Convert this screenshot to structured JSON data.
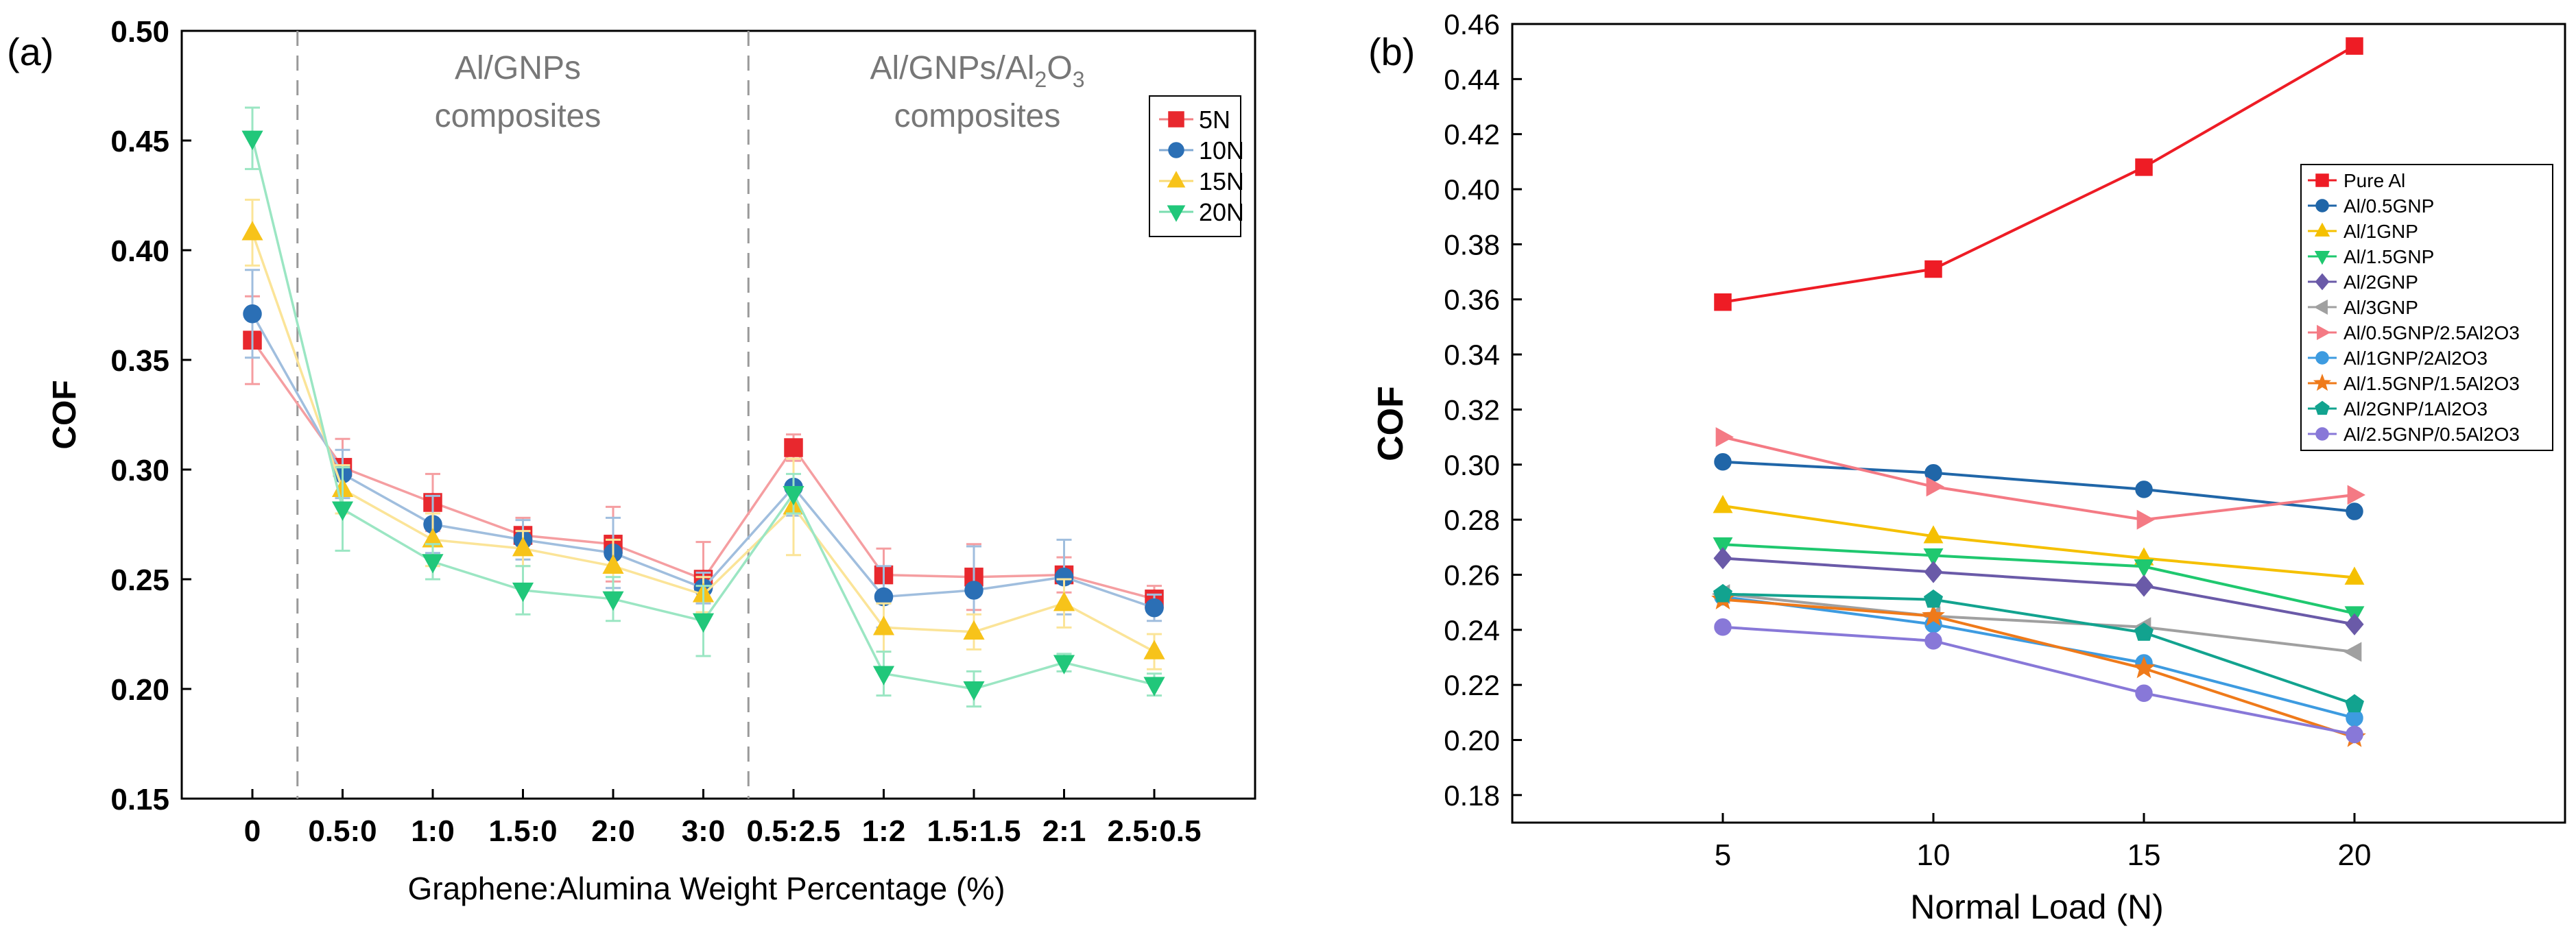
{
  "chart_data": [
    {
      "type": "line",
      "panel_label": "(a)",
      "title": "",
      "xlabel": "Graphene:Alumina Weight Percentage (%)",
      "ylabel": "COF",
      "categories": [
        "0",
        "0.5:0",
        "1:0",
        "1.5:0",
        "2:0",
        "3:0",
        "0.5:2.5",
        "1:2",
        "1.5:1.5",
        "2:1",
        "2.5:0.5"
      ],
      "ylim": [
        0.15,
        0.5
      ],
      "yticks": [
        "0.15",
        "0.20",
        "0.25",
        "0.30",
        "0.35",
        "0.40",
        "0.45",
        "0.50"
      ],
      "grid": false,
      "legend_position": "top-right",
      "region_labels": [
        {
          "lines": [
            "Al/GNPs",
            "composites"
          ],
          "after_category": "1.5:0"
        },
        {
          "line1_pre": "Al/GNPs/Al",
          "line1_sub": "2",
          "line1_mid": "O",
          "line1_sub2": "3",
          "line2": "composites",
          "after_category": "1.5:1.5"
        }
      ],
      "series": [
        {
          "name": "5N",
          "color": "#e8282e",
          "marker": "square",
          "values": [
            0.359,
            0.301,
            0.285,
            0.27,
            0.266,
            0.25,
            0.31,
            0.252,
            0.251,
            0.252,
            0.241
          ],
          "errors": [
            0.02,
            0.013,
            0.013,
            0.008,
            0.017,
            0.017,
            0.006,
            0.012,
            0.015,
            0.008,
            0.006
          ]
        },
        {
          "name": "10N",
          "color": "#2b6fb5",
          "marker": "circle",
          "values": [
            0.371,
            0.298,
            0.275,
            0.268,
            0.262,
            0.246,
            0.292,
            0.242,
            0.245,
            0.251,
            0.237
          ],
          "errors": [
            0.02,
            0.011,
            0.013,
            0.009,
            0.016,
            0.007,
            0.013,
            0.014,
            0.02,
            0.017,
            0.006
          ]
        },
        {
          "name": "15N",
          "color": "#f7c31a",
          "marker": "triangle-up",
          "values": [
            0.408,
            0.291,
            0.268,
            0.264,
            0.256,
            0.243,
            0.283,
            0.228,
            0.226,
            0.239,
            0.217
          ],
          "errors": [
            0.015,
            0.011,
            0.012,
            0.008,
            0.012,
            0.008,
            0.022,
            0.011,
            0.008,
            0.011,
            0.008
          ]
        },
        {
          "name": "20N",
          "color": "#21c77a",
          "marker": "triangle-down",
          "values": [
            0.451,
            0.282,
            0.258,
            0.245,
            0.241,
            0.231,
            0.289,
            0.207,
            0.2,
            0.212,
            0.202
          ],
          "errors": [
            0.014,
            0.019,
            0.008,
            0.011,
            0.01,
            0.016,
            0.009,
            0.01,
            0.008,
            0.004,
            0.005
          ]
        }
      ]
    },
    {
      "type": "line",
      "panel_label": "(b)",
      "title": "",
      "xlabel": "Normal Load (N)",
      "ylabel": "COF",
      "x": [
        5,
        10,
        15,
        20
      ],
      "xticks": [
        "5",
        "10",
        "15",
        "20"
      ],
      "xlim": [
        0,
        25
      ],
      "ylim": [
        0.17,
        0.46
      ],
      "yticks": [
        "0.18",
        "0.20",
        "0.22",
        "0.24",
        "0.26",
        "0.28",
        "0.30",
        "0.32",
        "0.34",
        "0.36",
        "0.38",
        "0.40",
        "0.42",
        "0.44",
        "0.46"
      ],
      "grid": false,
      "legend_position": "right",
      "series": [
        {
          "name": "Pure Al",
          "color": "#ee1c25",
          "marker": "square",
          "values": [
            0.359,
            0.371,
            0.408,
            0.452
          ]
        },
        {
          "name": "Al/0.5GNP",
          "color": "#2066a8",
          "marker": "circle",
          "values": [
            0.301,
            0.297,
            0.291,
            0.283
          ]
        },
        {
          "name": "Al/1GNP",
          "color": "#f5c000",
          "marker": "triangle-up",
          "values": [
            0.285,
            0.274,
            0.266,
            0.259
          ]
        },
        {
          "name": "Al/1.5GNP",
          "color": "#1fc86f",
          "marker": "triangle-down",
          "values": [
            0.271,
            0.267,
            0.263,
            0.246
          ]
        },
        {
          "name": "Al/2GNP",
          "color": "#6a5aa8",
          "marker": "diamond",
          "values": [
            0.266,
            0.261,
            0.256,
            0.242
          ]
        },
        {
          "name": "Al/3GNP",
          "color": "#a0a0a0",
          "marker": "triangle-left",
          "values": [
            0.253,
            0.245,
            0.241,
            0.232
          ]
        },
        {
          "name": "Al/0.5GNP/2.5Al2O3",
          "color": "#f47a84",
          "marker": "triangle-right",
          "values": [
            0.31,
            0.292,
            0.28,
            0.289
          ]
        },
        {
          "name": "Al/1GNP/2Al2O3",
          "color": "#3d9be0",
          "marker": "circle",
          "values": [
            0.252,
            0.242,
            0.228,
            0.208
          ]
        },
        {
          "name": "Al/1.5GNP/1.5Al2O3",
          "color": "#ef7a1a",
          "marker": "star",
          "values": [
            0.251,
            0.245,
            0.226,
            0.201
          ]
        },
        {
          "name": "Al/2GNP/1Al2O3",
          "color": "#12a38f",
          "marker": "pentagon",
          "values": [
            0.253,
            0.251,
            0.239,
            0.213
          ]
        },
        {
          "name": "Al/2.5GNP/0.5Al2O3",
          "color": "#8878d8",
          "marker": "circle",
          "values": [
            0.241,
            0.236,
            0.217,
            0.202
          ]
        }
      ]
    }
  ]
}
